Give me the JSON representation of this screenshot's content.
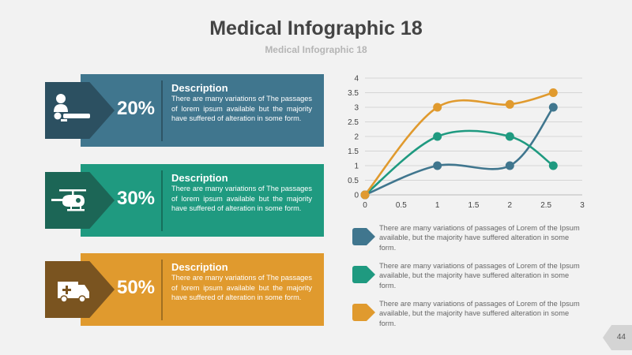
{
  "title": "Medical Infographic 18",
  "subtitle": "Medical Infographic 18",
  "cards": [
    {
      "percent": "20%",
      "heading": "Description",
      "text": "There are many variations of  The passages of lorem ipsum available but the majority have suffered of alteration in some form.",
      "icon": "doctor-bed-icon",
      "color": "#40768e"
    },
    {
      "percent": "30%",
      "heading": "Description",
      "text": "There are many variations of  The passages of lorem ipsum available but the majority have suffered of alteration in some form.",
      "icon": "helicopter-icon",
      "color": "#1f9a80"
    },
    {
      "percent": "50%",
      "heading": "Description",
      "text": "There are many variations of  The passages of lorem ipsum available but the majority have suffered of alteration in some form.",
      "icon": "ambulance-icon",
      "color": "#e09a2e"
    }
  ],
  "legend": [
    {
      "text": "There are many variations of passages of Lorem of the Ipsum available, but the majority have suffered alteration in some form."
    },
    {
      "text": "There are many variations of passages of Lorem  of the Ipsum available, but the majority have suffered alteration in some form."
    },
    {
      "text": "There are many variations of passages of Lorem of the  Ipsum available, but the majority have suffered alteration in some form."
    }
  ],
  "page_number": "44",
  "chart_data": {
    "type": "line",
    "xlim": [
      0,
      3
    ],
    "ylim": [
      0,
      4
    ],
    "x_ticks": [
      "0",
      "0.5",
      "1",
      "1.5",
      "2",
      "2.5",
      "3"
    ],
    "y_ticks": [
      "0",
      "0.5",
      "1",
      "1.5",
      "2",
      "2.5",
      "3",
      "3.5",
      "4"
    ],
    "grid": "horizontal",
    "smooth": true,
    "series": [
      {
        "color": "#40768e",
        "points": [
          [
            0,
            0
          ],
          [
            1,
            1
          ],
          [
            2,
            1
          ],
          [
            2.6,
            3
          ]
        ]
      },
      {
        "color": "#1f9a80",
        "points": [
          [
            0,
            0
          ],
          [
            1,
            2
          ],
          [
            2,
            2
          ],
          [
            2.6,
            1
          ]
        ]
      },
      {
        "color": "#e09a2e",
        "points": [
          [
            0,
            0
          ],
          [
            1,
            3
          ],
          [
            2,
            3.1
          ],
          [
            2.6,
            3.5
          ]
        ]
      }
    ]
  }
}
